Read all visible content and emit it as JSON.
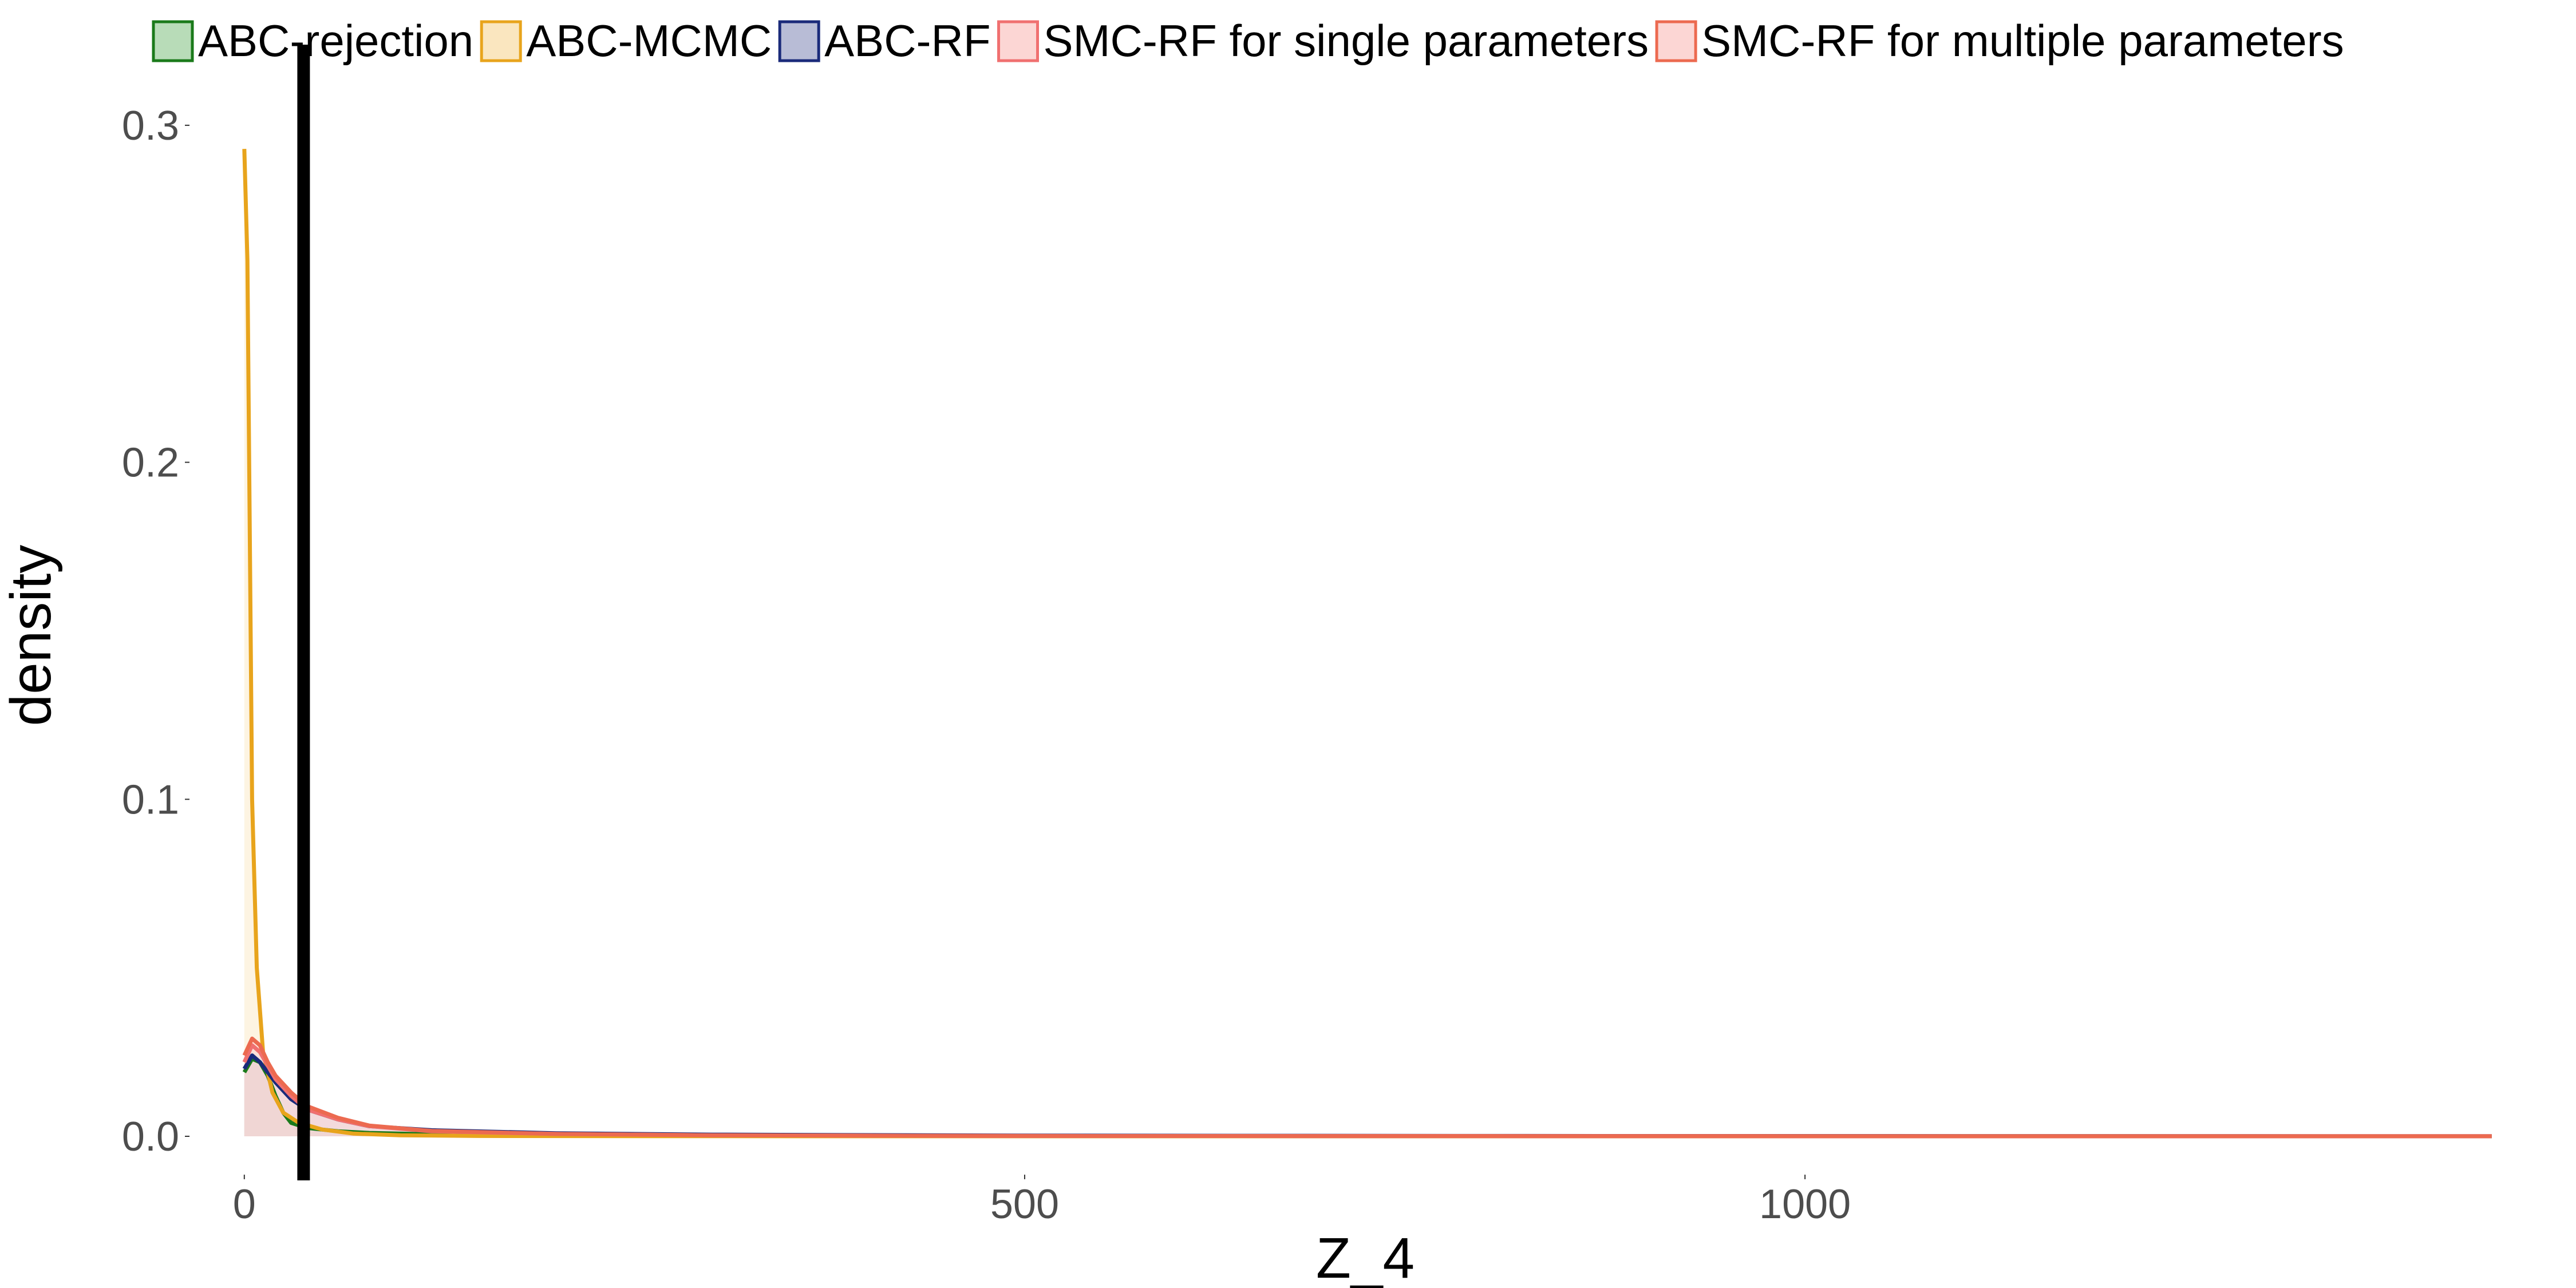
{
  "chart_data": {
    "type": "area",
    "title": "",
    "xlabel": "Z_4",
    "ylabel": "density",
    "xlim": [
      -30,
      1450
    ],
    "ylim": [
      0,
      0.31
    ],
    "x_ticks": [
      0,
      500,
      1000
    ],
    "x_tick_labels": [
      "0",
      "500",
      "1000"
    ],
    "y_ticks": [
      0.0,
      0.1,
      0.2,
      0.3
    ],
    "y_tick_labels": [
      "0.0",
      "0.1",
      "0.2",
      "0.3"
    ],
    "grid": false,
    "legend_position": "top",
    "reference_line": {
      "x": 38,
      "color": "#000000"
    },
    "series": [
      {
        "name": "ABC-rejection",
        "color": "#1a7a1a",
        "fill": "#b8dcb8",
        "points": [
          [
            0,
            0.019
          ],
          [
            5,
            0.023
          ],
          [
            10,
            0.022
          ],
          [
            15,
            0.018
          ],
          [
            20,
            0.012
          ],
          [
            25,
            0.007
          ],
          [
            30,
            0.004
          ],
          [
            40,
            0.0025
          ],
          [
            60,
            0.0015
          ],
          [
            80,
            0.001
          ],
          [
            120,
            0.0006
          ],
          [
            200,
            0.0002
          ],
          [
            400,
            8e-05
          ],
          [
            800,
            3e-05
          ],
          [
            1440,
            0.0
          ]
        ]
      },
      {
        "name": "ABC-MCMC",
        "color": "#e8a41c",
        "fill": "#fae6bf",
        "points": [
          [
            0,
            0.293
          ],
          [
            2,
            0.26
          ],
          [
            5,
            0.1
          ],
          [
            8,
            0.05
          ],
          [
            12,
            0.025
          ],
          [
            18,
            0.013
          ],
          [
            25,
            0.007
          ],
          [
            35,
            0.004
          ],
          [
            50,
            0.002
          ],
          [
            70,
            0.0008
          ],
          [
            100,
            0.0003
          ],
          [
            150,
            0.0001
          ],
          [
            300,
            4e-05
          ],
          [
            700,
            1e-05
          ],
          [
            1440,
            0.0
          ]
        ]
      },
      {
        "name": "ABC-RF",
        "color": "#1a2a7a",
        "fill": "#b8bcd6",
        "points": [
          [
            0,
            0.02
          ],
          [
            5,
            0.024
          ],
          [
            10,
            0.022
          ],
          [
            15,
            0.019
          ],
          [
            20,
            0.016
          ],
          [
            30,
            0.011
          ],
          [
            40,
            0.008
          ],
          [
            60,
            0.005
          ],
          [
            80,
            0.003
          ],
          [
            120,
            0.0018
          ],
          [
            200,
            0.0009
          ],
          [
            300,
            0.0005
          ],
          [
            500,
            0.0002
          ],
          [
            800,
            0.0001
          ],
          [
            1100,
            5e-05
          ],
          [
            1440,
            2e-05
          ]
        ]
      },
      {
        "name": "SMC-RF for single parameters",
        "color": "#f07070",
        "fill": "#fcd6d4",
        "points": [
          [
            0,
            0.022
          ],
          [
            5,
            0.027
          ],
          [
            10,
            0.025
          ],
          [
            15,
            0.021
          ],
          [
            20,
            0.017
          ],
          [
            30,
            0.012
          ],
          [
            40,
            0.008
          ],
          [
            60,
            0.005
          ],
          [
            80,
            0.003
          ],
          [
            120,
            0.0015
          ],
          [
            200,
            0.0007
          ],
          [
            300,
            0.0003
          ],
          [
            500,
            0.0001
          ],
          [
            900,
            4e-05
          ],
          [
            1440,
            1e-05
          ]
        ]
      },
      {
        "name": "SMC-RF for multiple parameters",
        "color": "#ec6a50",
        "fill": "#fcd6d4",
        "points": [
          [
            0,
            0.024
          ],
          [
            5,
            0.029
          ],
          [
            10,
            0.027
          ],
          [
            15,
            0.022
          ],
          [
            20,
            0.018
          ],
          [
            30,
            0.013
          ],
          [
            40,
            0.009
          ],
          [
            60,
            0.0055
          ],
          [
            80,
            0.0032
          ],
          [
            120,
            0.0016
          ],
          [
            200,
            0.0007
          ],
          [
            300,
            0.0003
          ],
          [
            500,
            0.0001
          ],
          [
            900,
            4e-05
          ],
          [
            1440,
            1e-05
          ]
        ]
      }
    ]
  }
}
